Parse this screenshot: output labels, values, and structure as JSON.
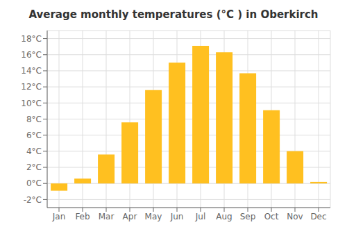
{
  "chart_data": {
    "type": "bar",
    "title": "Average monthly temperatures (°C ) in Oberkirch",
    "categories": [
      "Jan",
      "Feb",
      "Mar",
      "Apr",
      "May",
      "Jun",
      "Jul",
      "Aug",
      "Sep",
      "Oct",
      "Nov",
      "Dec"
    ],
    "values": [
      -0.9,
      0.6,
      3.6,
      7.6,
      11.6,
      15.0,
      17.1,
      16.3,
      13.7,
      9.1,
      4.0,
      0.2
    ],
    "color": "#FFC020",
    "ylim": [
      -3,
      19
    ],
    "yticks": [
      {
        "value": -2,
        "label": "-2°C"
      },
      {
        "value": 0,
        "label": "0°C"
      },
      {
        "value": 2,
        "label": "2°C"
      },
      {
        "value": 4,
        "label": "4°C"
      },
      {
        "value": 6,
        "label": "6°C"
      },
      {
        "value": 8,
        "label": "8°C"
      },
      {
        "value": 10,
        "label": "10°C"
      },
      {
        "value": 12,
        "label": "12°C"
      },
      {
        "value": 14,
        "label": "14°C"
      },
      {
        "value": 16,
        "label": "16°C"
      },
      {
        "value": 18,
        "label": "18°C"
      }
    ],
    "grid": true
  }
}
